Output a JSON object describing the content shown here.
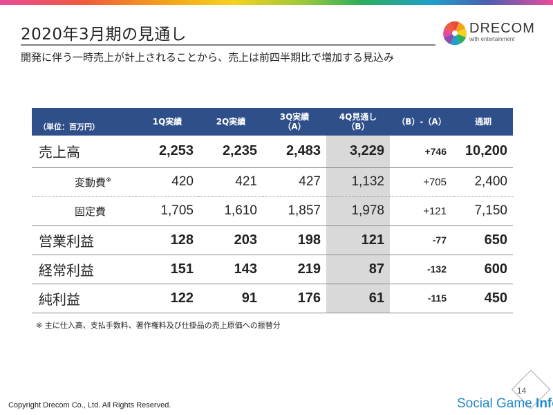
{
  "page": {
    "title": "2020年3月期の見通し",
    "subtitle": "開発に伴う一時売上が計上されることから、売上は前四半期比で増加する見込み"
  },
  "logo": {
    "name": "DRECOM",
    "tagline": "with entertainment"
  },
  "table": {
    "unit": "（単位：百万円）",
    "columns": [
      "1Q実績",
      "2Q実績",
      "3Q実績\n（A）",
      "4Q見通し\n（B）",
      "（B）-（A）",
      "通期"
    ],
    "rows": [
      {
        "label": "売上高",
        "values": [
          "2,253",
          "2,235",
          "2,483",
          "3,229",
          "+746",
          "10,200"
        ]
      },
      {
        "label": "変動費",
        "note_mark": "※",
        "values": [
          "420",
          "421",
          "427",
          "1,132",
          "+705",
          "2,400"
        ]
      },
      {
        "label": "固定費",
        "values": [
          "1,705",
          "1,610",
          "1,857",
          "1,978",
          "+121",
          "7,150"
        ]
      },
      {
        "label": "営業利益",
        "values": [
          "128",
          "203",
          "198",
          "121",
          "-77",
          "650"
        ]
      },
      {
        "label": "経常利益",
        "values": [
          "151",
          "143",
          "219",
          "87",
          "-132",
          "600"
        ]
      },
      {
        "label": "純利益",
        "values": [
          "122",
          "91",
          "176",
          "61",
          "-115",
          "450"
        ]
      }
    ]
  },
  "footnote": "※ 主に仕入高、支払手数料、著作権料及び仕掛品の売上原価への振替分",
  "footer": {
    "copyright": "Copyright Drecom Co., Ltd. All Rights Reserved.",
    "page_number": "14",
    "watermark_light": "Social Game ",
    "watermark_bold": "Info"
  },
  "colors": {
    "header_bg": "#2e4f8a",
    "forecast_column_bg": "#d9d9d9",
    "watermark": "#1e88c8"
  }
}
